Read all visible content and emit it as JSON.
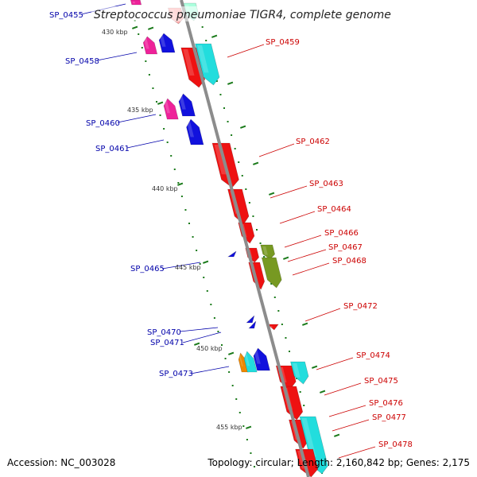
{
  "title": "Streptococcus pneumoniae TIGR4, complete genome",
  "footer": {
    "accession": "Accession: NC_003028",
    "summary": "Topology: circular; Length: 2,160,842 bp; Genes: 2,175"
  },
  "colors": {
    "backbone": "#8c8c8c",
    "tick": "#1a7a1a",
    "forward_label": "#0000aa",
    "reverse_label": "#cc0000",
    "red": "#ee1111",
    "cyan": "#22dddd",
    "blue": "#1111dd",
    "magenta": "#ee2299",
    "olive": "#779922",
    "orange": "#ee8800",
    "pink": "#ffaaaa",
    "mint": "#aaffdd"
  },
  "scale": [
    {
      "label": "430 kbp",
      "kbp": 430
    },
    {
      "label": "435 kbp",
      "kbp": 435
    },
    {
      "label": "440 kbp",
      "kbp": 440
    },
    {
      "label": "445 kbp",
      "kbp": 445
    },
    {
      "label": "450 kbp",
      "kbp": 450
    },
    {
      "label": "455 kbp",
      "kbp": 455
    }
  ],
  "forward_labels": [
    "SP_0455",
    "SP_0458",
    "SP_0460",
    "SP_0461",
    "SP_0465",
    "SP_0470",
    "SP_0471",
    "SP_0473"
  ],
  "reverse_labels": [
    "SP_0459",
    "SP_0462",
    "SP_0463",
    "SP_0464",
    "SP_0466",
    "SP_0467",
    "SP_0468",
    "SP_0472",
    "SP_0474",
    "SP_0475",
    "SP_0476",
    "SP_0477",
    "SP_0478"
  ],
  "genes": [
    {
      "name": "top-pink",
      "strand": "upper",
      "color": "pink"
    },
    {
      "name": "top-mint",
      "strand": "upper",
      "color": "mint"
    },
    {
      "name": "SP_0455",
      "strand": "lower",
      "color": "magenta"
    },
    {
      "name": "SP_0458a",
      "strand": "lower",
      "color": "magenta"
    },
    {
      "name": "SP_0458b",
      "strand": "lower",
      "color": "blue"
    },
    {
      "name": "SP_0459a",
      "strand": "upper",
      "color": "red"
    },
    {
      "name": "SP_0459b",
      "strand": "upper",
      "color": "cyan"
    },
    {
      "name": "SP_0460a",
      "strand": "lower",
      "color": "magenta"
    },
    {
      "name": "SP_0460b",
      "strand": "lower",
      "color": "blue"
    },
    {
      "name": "SP_0461",
      "strand": "lower",
      "color": "blue"
    },
    {
      "name": "SP_0462",
      "strand": "upper",
      "color": "red"
    },
    {
      "name": "SP_0463",
      "strand": "upper",
      "color": "red"
    },
    {
      "name": "SP_0464",
      "strand": "upper",
      "color": "red"
    },
    {
      "name": "SP_0466",
      "strand": "upper",
      "color": "red"
    },
    {
      "name": "SP_0467",
      "strand": "upper",
      "color": "olive"
    },
    {
      "name": "SP_0468",
      "strand": "upper",
      "color": "red"
    },
    {
      "name": "SP_0465",
      "strand": "lower",
      "color": "blue"
    },
    {
      "name": "SP_0470",
      "strand": "lower",
      "color": "blue"
    },
    {
      "name": "SP_0471",
      "strand": "lower",
      "color": "blue"
    },
    {
      "name": "SP_0472",
      "strand": "upper",
      "color": "red"
    },
    {
      "name": "SP_0473a",
      "strand": "lower",
      "color": "orange"
    },
    {
      "name": "SP_0473b",
      "strand": "lower",
      "color": "cyan"
    },
    {
      "name": "SP_0473c",
      "strand": "lower",
      "color": "blue"
    },
    {
      "name": "SP_0474a",
      "strand": "upper",
      "color": "red"
    },
    {
      "name": "SP_0474b",
      "strand": "upper",
      "color": "cyan"
    },
    {
      "name": "SP_0475",
      "strand": "upper",
      "color": "red"
    },
    {
      "name": "SP_0476",
      "strand": "upper",
      "color": "red"
    },
    {
      "name": "SP_0477",
      "strand": "upper",
      "color": "cyan"
    },
    {
      "name": "SP_0478",
      "strand": "upper",
      "color": "red"
    }
  ]
}
